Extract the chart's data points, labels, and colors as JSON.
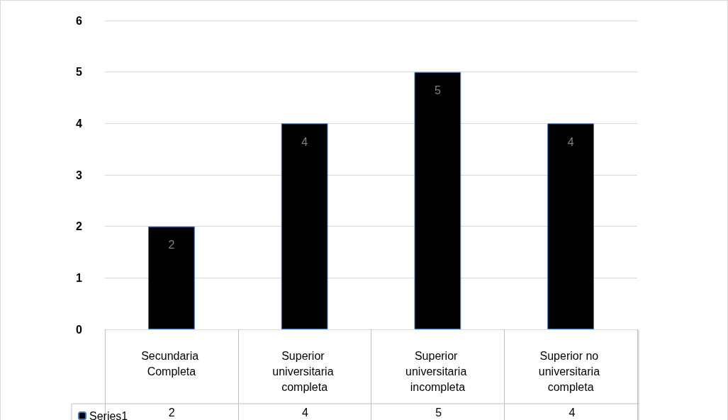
{
  "chart_data": {
    "type": "bar",
    "categories": [
      "Secundaria Completa",
      "Superior universitaria completa",
      "Superior universitaria incompleta",
      "Superior no universitaria completa"
    ],
    "series": [
      {
        "name": "Series1",
        "color": "#000000",
        "values": [
          2,
          4,
          5,
          4
        ],
        "value_labels": [
          "2",
          "4",
          "5",
          "4"
        ]
      }
    ],
    "ylim": [
      0,
      6
    ],
    "yticks": [
      0,
      1,
      2,
      3,
      4,
      5,
      6
    ],
    "grid": "y",
    "data_labels": true,
    "legend": "bottom left"
  }
}
